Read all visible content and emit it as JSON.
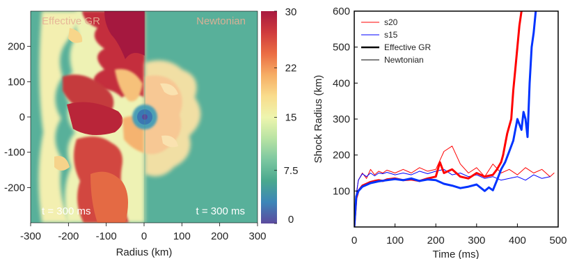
{
  "chart_data": [
    {
      "type": "heatmap",
      "panel_labels": {
        "left": "Effective GR",
        "right": "Newtonian"
      },
      "time_labels": {
        "left": "t = 300 ms",
        "right": "t = 300 ms"
      },
      "xlabel": "Radius (km)",
      "ylabel": "",
      "xlim": [
        -300,
        300
      ],
      "ylim": [
        -300,
        300
      ],
      "x_ticks": [
        -300,
        -200,
        -100,
        0,
        100,
        200,
        300
      ],
      "y_ticks": [
        -200,
        -100,
        0,
        100,
        200
      ],
      "colorbar": {
        "ticks": [
          "30",
          "22",
          "15",
          "7.5",
          "0"
        ],
        "tick_values": [
          30,
          22,
          15,
          7.5,
          0
        ],
        "range": [
          0,
          30
        ],
        "colors": [
          "#5b4a9e",
          "#3d86b8",
          "#4aa88e",
          "#7cc7a0",
          "#b8e3a3",
          "#eef5ae",
          "#f9dc8c",
          "#f6ad65",
          "#eb6d43",
          "#cf3b3d",
          "#a81a40"
        ]
      },
      "colors": {
        "background": "#58b09a"
      }
    },
    {
      "type": "line",
      "xlabel": "Time (ms)",
      "ylabel": "Shock Radius (km)",
      "xlim": [
        0,
        500
      ],
      "ylim": [
        0,
        600
      ],
      "x_ticks": [
        0,
        100,
        200,
        300,
        400,
        500
      ],
      "y_ticks": [
        100,
        200,
        300,
        400,
        500,
        600
      ],
      "legend": {
        "placement": "top-left",
        "entries": [
          {
            "label": "s20",
            "color": "#ff0000",
            "style": "thin"
          },
          {
            "label": "s15",
            "color": "#0000ff",
            "style": "thin"
          },
          {
            "label": "Effective GR",
            "color": "#000000",
            "style": "thick"
          },
          {
            "label": "Newtonian",
            "color": "#000000",
            "style": "thin"
          }
        ]
      },
      "series": [
        {
          "name": "s20",
          "variant": "Effective GR",
          "color": "#ff0000",
          "width": 3,
          "x": [
            0,
            5,
            10,
            20,
            30,
            40,
            50,
            60,
            70,
            80,
            100,
            120,
            140,
            160,
            180,
            200,
            210,
            220,
            240,
            260,
            280,
            300,
            320,
            340,
            350,
            360,
            365,
            370,
            375,
            380,
            385,
            390,
            395,
            400,
            405,
            410,
            413
          ],
          "y": [
            0,
            80,
            100,
            115,
            120,
            125,
            128,
            130,
            128,
            132,
            135,
            130,
            132,
            128,
            135,
            140,
            180,
            150,
            160,
            140,
            135,
            150,
            140,
            145,
            160,
            180,
            200,
            230,
            260,
            280,
            300,
            380,
            440,
            500,
            560,
            600,
            620
          ]
        },
        {
          "name": "s15",
          "variant": "Effective GR",
          "color": "#0033ff",
          "width": 3,
          "x": [
            0,
            5,
            10,
            20,
            40,
            60,
            80,
            100,
            120,
            140,
            160,
            180,
            200,
            220,
            240,
            260,
            280,
            300,
            320,
            330,
            340,
            350,
            360,
            370,
            380,
            390,
            400,
            410,
            415,
            420,
            425,
            430,
            435,
            440,
            445,
            448
          ],
          "y": [
            0,
            85,
            100,
            112,
            122,
            127,
            130,
            133,
            130,
            135,
            128,
            132,
            130,
            120,
            115,
            108,
            112,
            118,
            100,
            110,
            102,
            130,
            160,
            180,
            210,
            240,
            300,
            270,
            320,
            300,
            250,
            400,
            500,
            540,
            600,
            620
          ]
        },
        {
          "name": "s20",
          "variant": "Newtonian",
          "color": "#ff0000",
          "width": 1,
          "x": [
            0,
            5,
            10,
            20,
            30,
            40,
            50,
            60,
            70,
            80,
            100,
            120,
            140,
            160,
            180,
            200,
            220,
            240,
            260,
            280,
            300,
            320,
            340,
            360,
            380,
            400,
            420,
            440,
            460,
            480,
            490
          ],
          "y": [
            0,
            90,
            130,
            150,
            135,
            160,
            145,
            155,
            150,
            158,
            150,
            160,
            150,
            165,
            155,
            160,
            210,
            225,
            175,
            150,
            165,
            140,
            175,
            150,
            160,
            145,
            165,
            150,
            160,
            140,
            150
          ]
        },
        {
          "name": "s15",
          "variant": "Newtonian",
          "color": "#0000ff",
          "width": 1,
          "x": [
            0,
            5,
            10,
            20,
            30,
            40,
            50,
            60,
            70,
            80,
            100,
            120,
            140,
            160,
            180,
            200,
            220,
            240,
            260,
            280,
            300,
            320,
            340,
            360,
            380,
            400,
            420,
            440,
            460,
            480
          ],
          "y": [
            0,
            88,
            130,
            148,
            140,
            150,
            142,
            150,
            148,
            152,
            145,
            150,
            145,
            155,
            148,
            155,
            160,
            145,
            150,
            140,
            145,
            135,
            140,
            130,
            135,
            140,
            130,
            145,
            135,
            140
          ]
        }
      ]
    }
  ]
}
